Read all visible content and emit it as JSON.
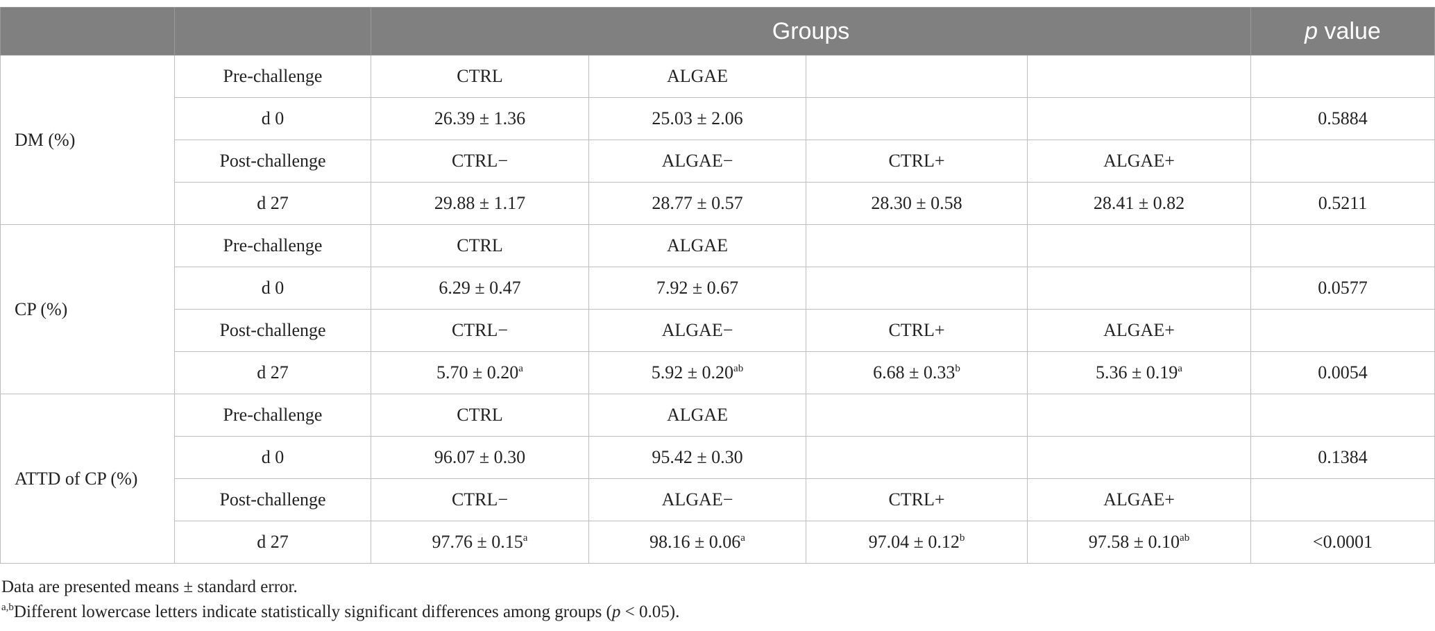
{
  "table": {
    "header": [
      "Groups",
      {
        "em": "p",
        "text": " value"
      }
    ],
    "sections": [
      {
        "label": "DM (%)",
        "rows": [
          [
            "Pre-challenge",
            "CTRL",
            "ALGAE",
            null,
            null,
            null
          ],
          [
            "d 0",
            "26.39 ± 1.36",
            "25.03 ± 2.06",
            null,
            null,
            "0.5884"
          ],
          [
            "Post-challenge",
            "CTRL−",
            "ALGAE−",
            "CTRL+",
            "ALGAE+",
            null
          ],
          [
            "d 27",
            "29.88 ± 1.17",
            "28.77 ± 0.57",
            "28.30 ± 0.58",
            "28.41 ± 0.82",
            "0.5211"
          ]
        ]
      },
      {
        "label": "CP (%)",
        "rows": [
          [
            "Pre-challenge",
            "CTRL",
            "ALGAE",
            null,
            null,
            null
          ],
          [
            "d 0",
            "6.29 ± 0.47",
            "7.92 ± 0.67",
            null,
            null,
            "0.0577"
          ],
          [
            "Post-challenge",
            "CTRL−",
            "ALGAE−",
            "CTRL+",
            "ALGAE+",
            null
          ],
          [
            "d 27",
            {
              "text": "5.70 ± 0.20",
              "sup": "a"
            },
            {
              "text": "5.92 ± 0.20",
              "sup": "ab"
            },
            {
              "text": "6.68 ± 0.33",
              "sup": "b"
            },
            {
              "text": "5.36 ± 0.19",
              "sup": "a"
            },
            "0.0054"
          ]
        ]
      },
      {
        "label": "ATTD of CP (%)",
        "rows": [
          [
            "Pre-challenge",
            "CTRL",
            "ALGAE",
            null,
            null,
            null
          ],
          [
            "d 0",
            "96.07 ± 0.30",
            "95.42 ± 0.30",
            null,
            null,
            "0.1384"
          ],
          [
            "Post-challenge",
            "CTRL−",
            "ALGAE−",
            "CTRL+",
            "ALGAE+",
            null
          ],
          [
            "d 27",
            {
              "text": "97.76 ± 0.15",
              "sup": "a"
            },
            {
              "text": "98.16 ± 0.06",
              "sup": "a"
            },
            {
              "text": "97.04 ± 0.12",
              "sup": "b"
            },
            {
              "text": "97.58 ± 0.10",
              "sup": "ab"
            },
            "<0.0001"
          ]
        ]
      }
    ]
  },
  "footnotes": [
    "Data are presented means ± standard error.",
    {
      "sup": "a,b",
      "parts": [
        "Different lowercase letters indicate statistically significant differences among groups (",
        "p",
        " < 0.05)."
      ]
    }
  ]
}
